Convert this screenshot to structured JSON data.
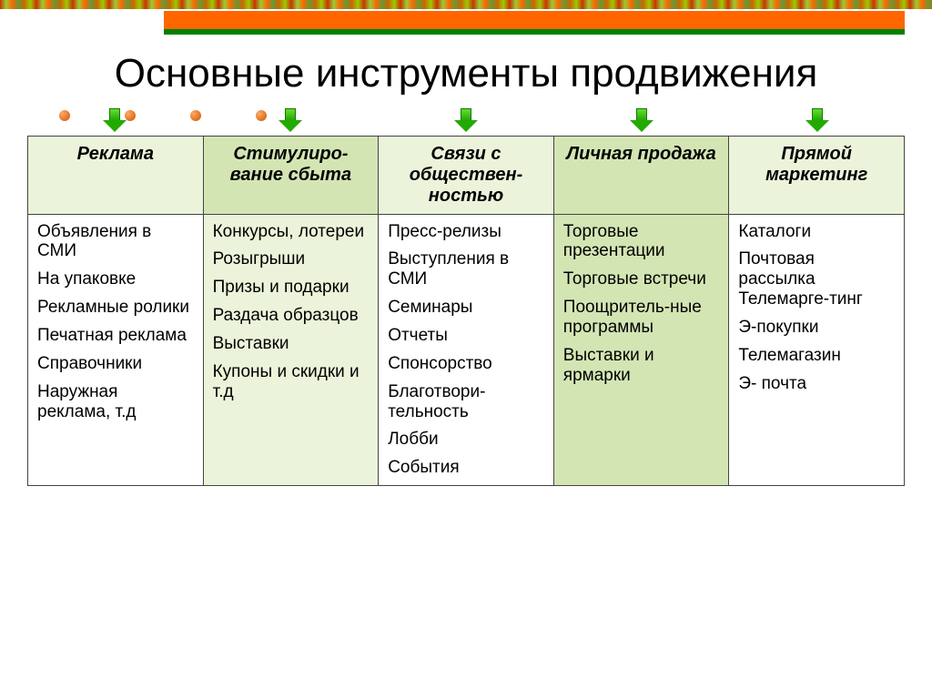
{
  "title": "Основные инструменты продвижения",
  "colors": {
    "header_bg_light": "#ebf4da",
    "header_bg_dark": "#d4e5b4",
    "cell_bg_light": "#ffffff",
    "cell_bg_dark": "#d4e5b4",
    "border": "#444444",
    "orange_bar": "#ff6600",
    "green_bar": "#008000"
  },
  "columns": [
    {
      "header": "Реклама",
      "header_bg": "#ebf4da",
      "cell_bg": "#ffffff",
      "items": [
        "Объявления в СМИ",
        "На упаковке",
        "Рекламные ролики",
        "Печатная реклама",
        "Справочники",
        "Наружная реклама,  т.д"
      ]
    },
    {
      "header": "Стимулиро-вание сбыта",
      "header_bg": "#d4e5b4",
      "cell_bg": "#ebf4da",
      "items": [
        "Конкурсы, лотереи",
        "Розыгрыши",
        "Призы и подарки",
        "Раздача образцов",
        "Выставки",
        "Купоны и скидки и т.д"
      ]
    },
    {
      "header": "Связи с обществен-ностью",
      "header_bg": "#ebf4da",
      "cell_bg": "#ffffff",
      "items": [
        "Пресс-релизы",
        "Выступления в СМИ",
        "Семинары",
        "Отчеты",
        "Спонсорство",
        "Благотвори-тельность",
        "Лобби",
        "События"
      ]
    },
    {
      "header": "Личная продажа",
      "header_bg": "#d4e5b4",
      "cell_bg": "#d4e5b4",
      "items": [
        "Торговые презентации",
        "Торговые встречи",
        "Поощритель-ные программы",
        "Выставки и ярмарки"
      ]
    },
    {
      "header": "Прямой маркетинг",
      "header_bg": "#ebf4da",
      "cell_bg": "#ffffff",
      "items": [
        "Каталоги",
        "Почтовая рассылка Телемарге-тинг",
        "Э-покупки",
        "Телемагазин",
        "Э- почта"
      ]
    }
  ]
}
